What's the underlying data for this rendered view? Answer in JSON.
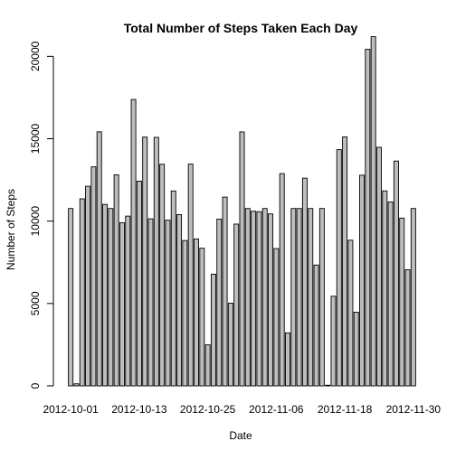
{
  "chart_data": {
    "type": "bar",
    "title": "Total Number of Steps Taken Each Day",
    "xlabel": "Date",
    "ylabel": "Number of Steps",
    "ylim": [
      0,
      21500
    ],
    "y_ticks": [
      0,
      5000,
      10000,
      15000,
      20000
    ],
    "x_tick_labels": [
      "2012-10-01",
      "2012-10-13",
      "2012-10-25",
      "2012-11-06",
      "2012-11-18",
      "2012-11-30"
    ],
    "categories": [
      "2012-10-01",
      "2012-10-02",
      "2012-10-03",
      "2012-10-04",
      "2012-10-05",
      "2012-10-06",
      "2012-10-07",
      "2012-10-08",
      "2012-10-09",
      "2012-10-10",
      "2012-10-11",
      "2012-10-12",
      "2012-10-13",
      "2012-10-14",
      "2012-10-15",
      "2012-10-16",
      "2012-10-17",
      "2012-10-18",
      "2012-10-19",
      "2012-10-20",
      "2012-10-21",
      "2012-10-22",
      "2012-10-23",
      "2012-10-24",
      "2012-10-25",
      "2012-10-26",
      "2012-10-27",
      "2012-10-28",
      "2012-10-29",
      "2012-10-30",
      "2012-10-31",
      "2012-11-01",
      "2012-11-02",
      "2012-11-03",
      "2012-11-04",
      "2012-11-05",
      "2012-11-06",
      "2012-11-07",
      "2012-11-08",
      "2012-11-09",
      "2012-11-10",
      "2012-11-11",
      "2012-11-12",
      "2012-11-13",
      "2012-11-14",
      "2012-11-15",
      "2012-11-16",
      "2012-11-17",
      "2012-11-18",
      "2012-11-19",
      "2012-11-20",
      "2012-11-21",
      "2012-11-22",
      "2012-11-23",
      "2012-11-24",
      "2012-11-25",
      "2012-11-26",
      "2012-11-27",
      "2012-11-28",
      "2012-11-29",
      "2012-11-30"
    ],
    "values": [
      10766,
      126,
      11352,
      12116,
      13294,
      15420,
      11015,
      10766,
      12811,
      9900,
      10304,
      17382,
      12426,
      15098,
      10139,
      15084,
      13452,
      10056,
      11829,
      10395,
      8821,
      13460,
      8918,
      8355,
      2492,
      6778,
      10119,
      11458,
      5018,
      9819,
      15414,
      10766,
      10600,
      10571,
      10766,
      10439,
      8334,
      12883,
      3219,
      10766,
      10766,
      12608,
      10765,
      7336,
      10766,
      41,
      5441,
      14339,
      15110,
      8841,
      4472,
      12787,
      20427,
      21194,
      14478,
      11834,
      11162,
      13646,
      10183,
      7047,
      10766
    ],
    "grid": false,
    "legend": "none"
  }
}
